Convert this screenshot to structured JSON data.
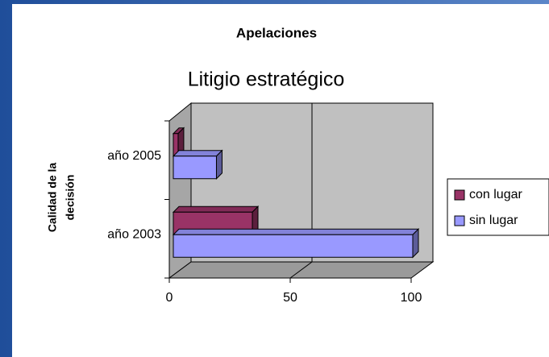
{
  "chart_data": {
    "type": "bar3d_horizontal",
    "title": "Apelaciones",
    "subtitle": "Litigio estratégico",
    "y_label": [
      "Calidad de la",
      "decisión"
    ],
    "categories": [
      "año 2003",
      "año 2005"
    ],
    "series": [
      {
        "name": "con lugar",
        "color": "#993366",
        "values": [
          33,
          2
        ]
      },
      {
        "name": "sin lugar",
        "color": "#9999ff",
        "values": [
          100,
          18
        ]
      }
    ],
    "xlim": [
      0,
      100
    ],
    "xticks": [
      0,
      50,
      100
    ],
    "grid": true,
    "legend": "right"
  }
}
